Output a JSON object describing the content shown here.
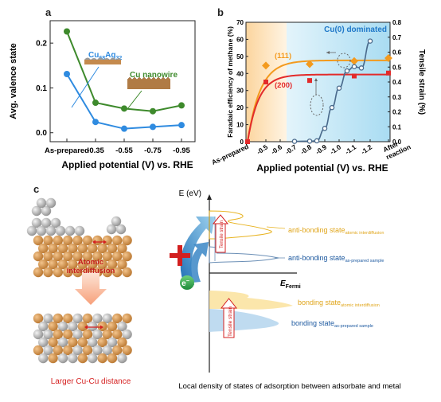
{
  "panels": {
    "a": "a",
    "b": "b",
    "c": "c"
  },
  "colors": {
    "blue": "#2f8be0",
    "green": "#3e8a2c",
    "orange": "#f39a1e",
    "red": "#e32b2b",
    "slate": "#4a6a8c",
    "cyan_bg": "#bfe6f7",
    "peach_bg": "#fde2bd"
  },
  "chart_data": [
    {
      "panel": "a",
      "type": "line",
      "categories": [
        "As-prepared",
        "-0.35",
        "-0.55",
        "-0.75",
        "-0.95"
      ],
      "xlabel": "Applied potential (V) vs. RHE",
      "ylabel": "Avg. valence state",
      "ylim": [
        -0.02,
        0.25
      ],
      "yticks": [
        "0.0",
        "0.1",
        "0.2"
      ],
      "series": [
        {
          "name_main": "Cu",
          "name_sub": "68",
          "name_main2": "Ag",
          "name_sub2": "32",
          "color": "#2f8be0",
          "values": [
            0.131,
            0.024,
            0.009,
            0.013,
            0.017
          ]
        },
        {
          "name": "Cu nanowire",
          "color": "#3e8a2c",
          "values": [
            0.226,
            0.067,
            0.054,
            0.048,
            0.061
          ]
        }
      ]
    },
    {
      "panel": "b",
      "type": "line",
      "xlabel": "Applied potential (V) vs. RHE",
      "ylabel_left": "Faradaic efficiency of methane (%)",
      "ylabel_right": "Tensile strain (%)",
      "annotation": "Cu(0) dominated",
      "xticks": [
        "As-prepared",
        "-0.5",
        "-0.6",
        "-0.7",
        "-0.8",
        "-0.9",
        "-1.0",
        "-1.1",
        "-1.2",
        "After reaction"
      ],
      "ylim_left": [
        0,
        70
      ],
      "ylim_right": [
        0,
        0.8
      ],
      "yticks_left": [
        "0",
        "10",
        "20",
        "30",
        "40",
        "50",
        "60",
        "70"
      ],
      "yticks_right": [
        "0.0",
        "0.1",
        "0.2",
        "0.3",
        "0.4",
        "0.5",
        "0.6",
        "0.7",
        "0.8"
      ],
      "series": [
        {
          "name": "(111)",
          "axis": "right",
          "color": "#f39a1e",
          "x": [
            "-0.5",
            "-0.8",
            "-1.1",
            "After reaction"
          ],
          "values": [
            0.51,
            0.52,
            0.54,
            0.56
          ]
        },
        {
          "name": "(200)",
          "axis": "right",
          "color": "#e32b2b",
          "x": [
            "As-prepared",
            "-0.5",
            "-0.8",
            "-1.1",
            "After reaction"
          ],
          "values": [
            0.0,
            0.4,
            0.41,
            0.44,
            0.46
          ]
        },
        {
          "name": "",
          "axis": "left",
          "color": "#4a6a8c",
          "x": [
            "-0.7",
            "-0.8",
            "-0.85",
            "-0.9",
            "-0.95",
            "-1.0",
            "-1.05",
            "-1.1",
            "-1.15",
            "-1.2"
          ],
          "values": [
            0.2,
            0.3,
            0.5,
            7.8,
            20.0,
            31.4,
            41.5,
            44.0,
            43.2,
            59.0
          ]
        }
      ]
    }
  ],
  "panel_c": {
    "atomic_interdiffusion": "Atomic\ninterdiffusion",
    "larger_distance": "Larger Cu-Cu distance",
    "electron": "e",
    "electron_sup": "−",
    "energy_axis": "E (eV)",
    "fermi": "E",
    "fermi_sub": "Fermi",
    "tensile_strain": "Tensile strain",
    "anti_bonding_ai_main": "anti-bonding state",
    "anti_bonding_ai_sub": "atomic interdiffusion",
    "anti_bonding_ap_main": "anti-bonding state",
    "anti_bonding_ap_sub": "as-prepared sample",
    "bonding_ai_main": "bonding state",
    "bonding_ai_sub": "atomic interdiffusion",
    "bonding_ap_main": "bonding state",
    "bonding_ap_sub": "as-prepared sample",
    "caption": "Local density of states of adsorption between adsorbate and metal"
  }
}
